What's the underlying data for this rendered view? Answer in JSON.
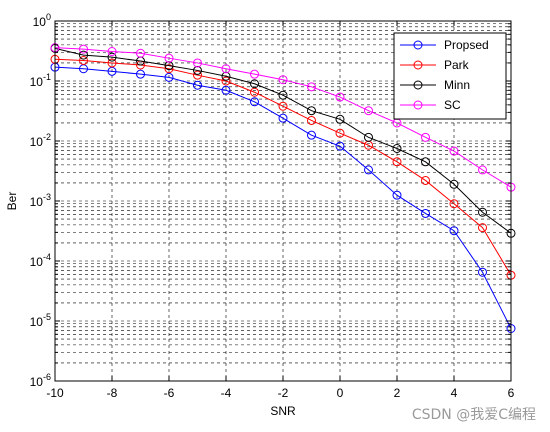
{
  "chart_data": {
    "type": "line",
    "xlabel": "SNR",
    "ylabel": "Ber",
    "xlim": [
      -10,
      6
    ],
    "ylim": [
      1e-06,
      1
    ],
    "yscale": "log",
    "grid": "on (dashed, major and minor)",
    "legend_placement": "top-right",
    "x": [
      -10,
      -9,
      -8,
      -7,
      -6,
      -5,
      -4,
      -3,
      -2,
      -1,
      0,
      1,
      2,
      3,
      4,
      5,
      6
    ],
    "xticks": [
      "-10",
      "-8",
      "-6",
      "-4",
      "-2",
      "0",
      "2",
      "4",
      "6"
    ],
    "yticks": [
      {
        "base": "10",
        "exp": "-6"
      },
      {
        "base": "10",
        "exp": "-5"
      },
      {
        "base": "10",
        "exp": "-4"
      },
      {
        "base": "10",
        "exp": "-3"
      },
      {
        "base": "10",
        "exp": "-2"
      },
      {
        "base": "10",
        "exp": "-1"
      },
      {
        "base": "10",
        "exp": "0"
      }
    ],
    "series": [
      {
        "name": "Propsed",
        "color": "#0000ff",
        "marker": "circle",
        "values": [
          0.17,
          0.16,
          0.145,
          0.13,
          0.115,
          0.085,
          0.07,
          0.045,
          0.024,
          0.0125,
          0.0082,
          0.0033,
          0.00125,
          0.00062,
          0.00032,
          6.5e-05,
          7.5e-06
        ]
      },
      {
        "name": "Park",
        "color": "#ff0000",
        "marker": "circle",
        "values": [
          0.23,
          0.22,
          0.2,
          0.185,
          0.16,
          0.125,
          0.1,
          0.065,
          0.038,
          0.022,
          0.0135,
          0.0085,
          0.0045,
          0.0022,
          0.0009,
          0.00036,
          5.8e-05
        ]
      },
      {
        "name": "Minn",
        "color": "#000000",
        "marker": "circle",
        "values": [
          0.35,
          0.27,
          0.25,
          0.215,
          0.18,
          0.15,
          0.12,
          0.09,
          0.058,
          0.032,
          0.023,
          0.0115,
          0.0075,
          0.0045,
          0.0019,
          0.00065,
          0.00029
        ]
      },
      {
        "name": "SC",
        "color": "#ff00ff",
        "marker": "circle",
        "values": [
          0.36,
          0.34,
          0.31,
          0.29,
          0.24,
          0.2,
          0.16,
          0.13,
          0.105,
          0.08,
          0.054,
          0.032,
          0.02,
          0.0115,
          0.0068,
          0.0033,
          0.0017
        ]
      }
    ]
  },
  "watermark": "CSDN @我爱C编程"
}
